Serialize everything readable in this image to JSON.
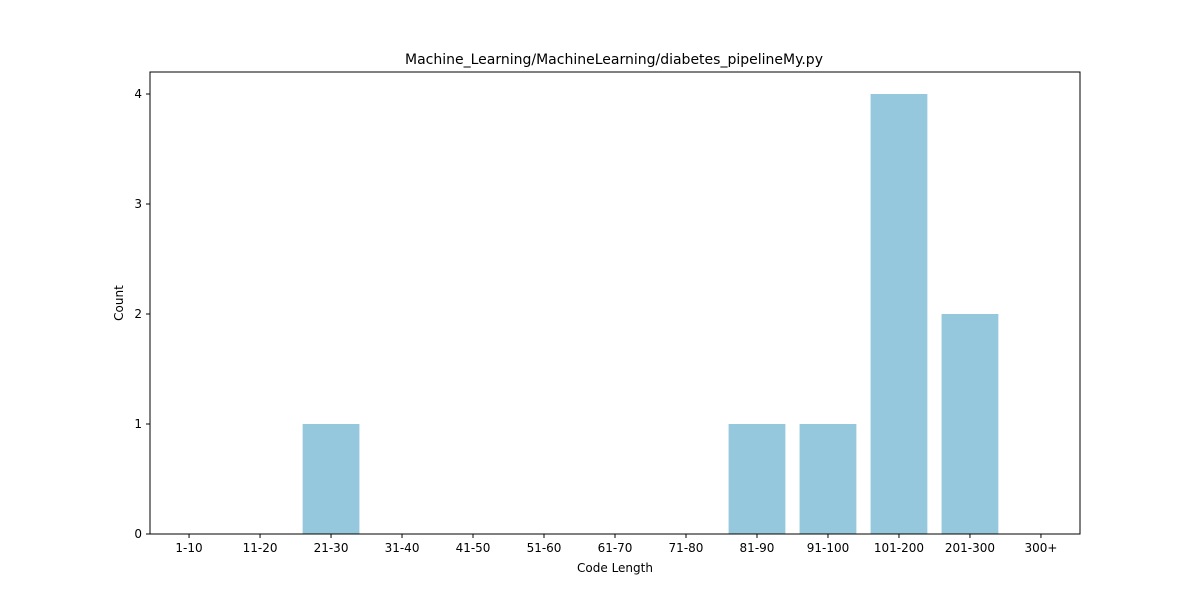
{
  "chart_data": {
    "type": "bar",
    "title": "Machine_Learning/MachineLearning/diabetes_pipelineMy.py",
    "xlabel": "Code Length",
    "ylabel": "Count",
    "categories": [
      "1-10",
      "11-20",
      "21-30",
      "31-40",
      "41-50",
      "51-60",
      "61-70",
      "71-80",
      "81-90",
      "91-100",
      "101-200",
      "201-300",
      "300+"
    ],
    "values": [
      0,
      0,
      1,
      0,
      0,
      0,
      0,
      0,
      1,
      1,
      4,
      2,
      0
    ],
    "ylim": [
      0,
      4.2
    ],
    "yticks": [
      0,
      1,
      2,
      3,
      4
    ],
    "grid": false,
    "legend": "none",
    "bar_color": "#95c8dc"
  }
}
